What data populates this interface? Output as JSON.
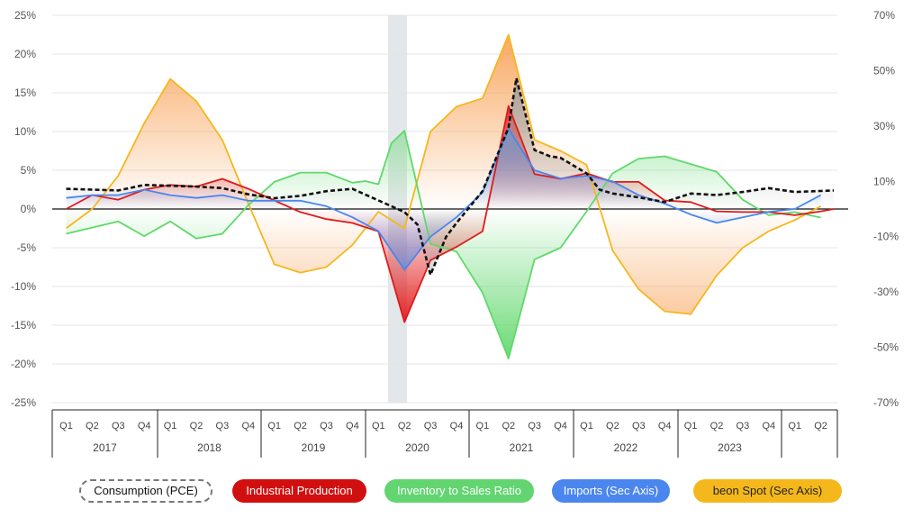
{
  "chart_data": {
    "type": "line-area",
    "y_left": {
      "min": -25,
      "max": 25,
      "ticks": [
        "25%",
        "20%",
        "15%",
        "10%",
        "5%",
        "0%",
        "-5%",
        "-10%",
        "-15%",
        "-20%",
        "-25%"
      ]
    },
    "y_right": {
      "min": -70,
      "max": 70,
      "ticks": [
        "70%",
        "50%",
        "30%",
        "10%",
        "-10%",
        "-30%",
        "-50%",
        "-70%"
      ]
    },
    "quarters": [
      "Q1",
      "Q2",
      "Q3",
      "Q4",
      "Q1",
      "Q2",
      "Q3",
      "Q4",
      "Q1",
      "Q2",
      "Q3",
      "Q4",
      "Q1",
      "Q2",
      "Q3",
      "Q4",
      "Q1",
      "Q2",
      "Q3",
      "Q4",
      "Q1",
      "Q2",
      "Q3",
      "Q4",
      "Q1",
      "Q2",
      "Q3",
      "Q4",
      "Q1",
      "Q2"
    ],
    "years": [
      "2017",
      "2018",
      "2019",
      "2020",
      "2021",
      "2022",
      "2023"
    ],
    "highlight_period": "2020 Q2",
    "series": [
      {
        "name": "Consumption (PCE)",
        "axis": "left",
        "color": "#111111",
        "style": "dashed",
        "fill": "#9a9ca2",
        "x": [
          0,
          1,
          2,
          3,
          4,
          5,
          6,
          7,
          8,
          9,
          10,
          11,
          12,
          13,
          13.5,
          14,
          14.6,
          15,
          16,
          17,
          17.3,
          18,
          18.6,
          19,
          20,
          20.5,
          21,
          22,
          23,
          24,
          25,
          26,
          27,
          28,
          29.5
        ],
        "y": [
          2.6,
          2.5,
          2.4,
          3.1,
          3.0,
          2.9,
          2.7,
          1.9,
          1.4,
          1.7,
          2.3,
          2.6,
          1.1,
          -0.4,
          -2.0,
          -8.5,
          -3.6,
          -1.8,
          2.3,
          10.5,
          16.9,
          7.6,
          6.8,
          6.6,
          4.6,
          2.5,
          2.0,
          1.5,
          0.9,
          2.0,
          1.8,
          2.2,
          2.7,
          2.2,
          2.4
        ]
      },
      {
        "name": "Industrial Production",
        "axis": "left",
        "color": "#dd1b1b",
        "style": "solid",
        "fill": "#e21a1a",
        "x": [
          0,
          1,
          2,
          3,
          4,
          5,
          6,
          7,
          8,
          9,
          10,
          11,
          12,
          13,
          14,
          15,
          16,
          17,
          18,
          19,
          20,
          21,
          22,
          23,
          24,
          25,
          26,
          27,
          28,
          29,
          29.5
        ],
        "y": [
          0.0,
          1.8,
          1.2,
          2.5,
          3.1,
          2.9,
          3.9,
          2.6,
          1.1,
          -0.4,
          -1.3,
          -1.8,
          -2.9,
          -14.6,
          -6.6,
          -4.9,
          -2.9,
          13.3,
          4.5,
          3.9,
          4.6,
          3.5,
          3.5,
          1.1,
          0.9,
          -0.3,
          -0.4,
          -0.4,
          -0.8,
          -0.3,
          0.0
        ]
      },
      {
        "name": "Inventory to Sales Ratio",
        "axis": "left",
        "color": "#5ed96a",
        "style": "solid",
        "fill": "#62d86e",
        "x": [
          0,
          1,
          2,
          3,
          4,
          5,
          6,
          7,
          8,
          9,
          10,
          11,
          11.5,
          12,
          12.5,
          13,
          14,
          15,
          16,
          17,
          18,
          19,
          20,
          21,
          22,
          23,
          24,
          25,
          26,
          27,
          28,
          29
        ],
        "y": [
          -3.2,
          -2.4,
          -1.6,
          -3.5,
          -1.6,
          -3.8,
          -3.2,
          0.5,
          3.5,
          4.7,
          4.7,
          3.4,
          3.6,
          3.2,
          8.5,
          10.1,
          -4.5,
          -5.5,
          -10.8,
          -19.3,
          -6.5,
          -5.0,
          -0.3,
          4.6,
          6.5,
          6.8,
          5.8,
          4.8,
          1.2,
          -0.8,
          -0.4,
          -1.1
        ]
      },
      {
        "name": "Imports (Sec Axis)",
        "axis": "right",
        "color": "#4a86ee",
        "style": "solid",
        "fill": "#5a8fe8",
        "x": [
          0,
          1,
          2,
          3,
          4,
          5,
          6,
          7,
          8,
          9,
          10,
          11,
          12,
          13,
          14,
          15,
          16,
          17,
          18,
          19,
          20,
          21,
          22,
          23,
          24,
          25,
          26,
          27,
          28,
          29
        ],
        "y": [
          4,
          5,
          5,
          7,
          5,
          4,
          5,
          3,
          3,
          3,
          1,
          -3,
          -8,
          -22,
          -10,
          -3,
          6,
          29,
          14,
          11,
          12,
          10,
          5,
          2,
          -2,
          -5,
          -3,
          -1,
          0,
          5
        ]
      },
      {
        "name": "beon Spot (Sec Axis)",
        "axis": "right",
        "color": "#f4b81d",
        "style": "solid",
        "fill": "#f8a45a",
        "x": [
          0,
          1,
          2,
          3,
          4,
          5,
          6,
          7,
          8,
          9,
          10,
          11,
          12,
          13,
          14,
          15,
          16,
          17,
          18,
          19,
          20,
          21,
          22,
          23,
          24,
          25,
          26,
          27,
          28,
          29
        ],
        "y": [
          -7,
          0,
          12,
          31,
          47,
          39,
          25,
          2,
          -20,
          -23,
          -21,
          -13,
          -1,
          -7,
          28,
          37,
          40,
          63,
          25,
          21,
          16,
          -15,
          -29,
          -37,
          -38,
          -24,
          -14,
          -8,
          -4,
          1
        ]
      }
    ]
  }
}
